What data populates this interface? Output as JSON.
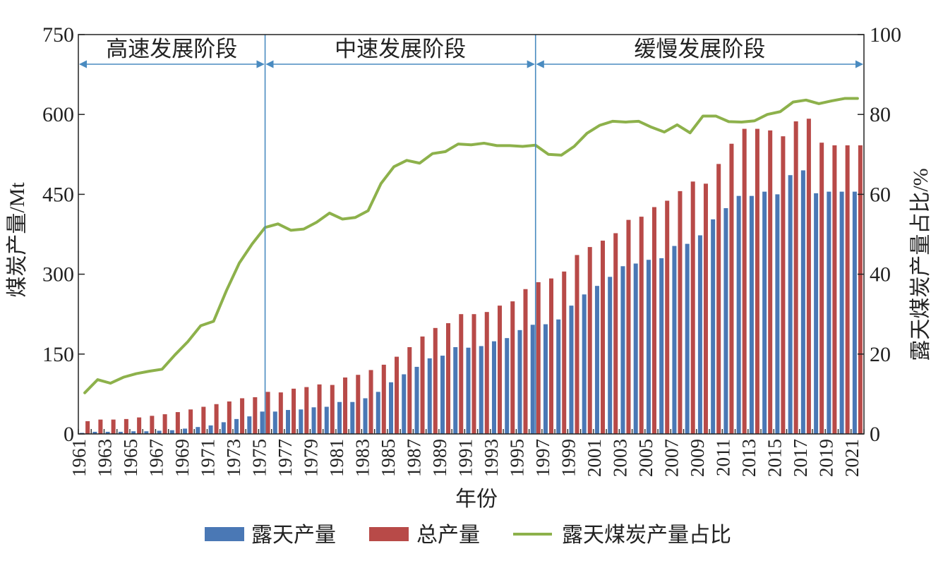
{
  "chart_data": {
    "type": "bar",
    "xlabel": "年份",
    "ylabel_left": "煤炭产量/Mt",
    "ylabel_right": "露天煤炭产量占比/%",
    "ylim_left": [
      0,
      750
    ],
    "ylim_right": [
      0,
      100
    ],
    "yticks_left": [
      "0",
      "150",
      "300",
      "450",
      "600",
      "750"
    ],
    "yticks_right": [
      "0",
      "20",
      "40",
      "60",
      "80",
      "100"
    ],
    "x": [
      1961,
      1962,
      1963,
      1964,
      1965,
      1966,
      1967,
      1968,
      1969,
      1970,
      1971,
      1972,
      1973,
      1974,
      1975,
      1976,
      1977,
      1978,
      1979,
      1980,
      1981,
      1982,
      1983,
      1984,
      1985,
      1986,
      1987,
      1988,
      1989,
      1990,
      1991,
      1992,
      1993,
      1994,
      1995,
      1996,
      1997,
      1998,
      1999,
      2000,
      2001,
      2002,
      2003,
      2004,
      2005,
      2006,
      2007,
      2008,
      2009,
      2010,
      2011,
      2012,
      2013,
      2014,
      2015,
      2016,
      2017,
      2018,
      2019,
      2020,
      2021
    ],
    "xtick_labels": [
      "1961",
      "1963",
      "1965",
      "1967",
      "1969",
      "1971",
      "1973",
      "1975",
      "1977",
      "1979",
      "1981",
      "1983",
      "1985",
      "1987",
      "1989",
      "1991",
      "1993",
      "1995",
      "1997",
      "1999",
      "2001",
      "2003",
      "2005",
      "2007",
      "2009",
      "2011",
      "2013",
      "2015",
      "2017",
      "2019",
      "2021"
    ],
    "series": [
      {
        "name": "露天产量",
        "color": "#4a78b5",
        "type": "bar",
        "axis": "left",
        "values": [
          2,
          4,
          4,
          4,
          5,
          5,
          6,
          7,
          10,
          13,
          16,
          22,
          28,
          33,
          42,
          42,
          45,
          46,
          50,
          51,
          60,
          60,
          67,
          79,
          97,
          112,
          126,
          142,
          147,
          163,
          162,
          165,
          174,
          180,
          195,
          205,
          206,
          215,
          241,
          262,
          278,
          295,
          315,
          320,
          327,
          330,
          353,
          357,
          373,
          403,
          424,
          447,
          447,
          455,
          450,
          486,
          495,
          452,
          455,
          455,
          455
        ],
        "values_note": ""
      },
      {
        "name": "总产量",
        "color": "#b84a48",
        "type": "bar",
        "axis": "left",
        "values": [
          24,
          27,
          27,
          28,
          31,
          34,
          37,
          41,
          46,
          51,
          56,
          61,
          67,
          69,
          79,
          78,
          85,
          88,
          93,
          92,
          106,
          111,
          120,
          130,
          145,
          163,
          183,
          199,
          208,
          225,
          225,
          229,
          241,
          249,
          272,
          285,
          292,
          305,
          336,
          351,
          363,
          377,
          402,
          408,
          426,
          438,
          456,
          474,
          470,
          507,
          545,
          573,
          573,
          570,
          559,
          587,
          592,
          547,
          542,
          542,
          542
        ],
        "values_note": ""
      },
      {
        "name": "露天煤炭产量占比",
        "color": "#8db14b",
        "type": "line",
        "axis": "right",
        "values": [
          10.3,
          13.6,
          12.7,
          14.2,
          15.1,
          15.7,
          16.2,
          19.8,
          23.1,
          27.1,
          28.2,
          35.9,
          42.8,
          47.6,
          51.7,
          52.6,
          51.0,
          51.3,
          53.0,
          55.3,
          53.8,
          54.2,
          55.9,
          62.7,
          66.9,
          68.5,
          67.8,
          70.2,
          70.7,
          72.6,
          72.4,
          72.8,
          72.2,
          72.2,
          72.0,
          72.3,
          70.0,
          69.8,
          72.0,
          75.3,
          77.3,
          78.3,
          78.1,
          78.3,
          76.8,
          75.6,
          77.4,
          75.4,
          79.6,
          79.6,
          78.2,
          78.1,
          78.4,
          80.0,
          80.7,
          83.1,
          83.6,
          82.7,
          83.4,
          84.0,
          84.0
        ]
      }
    ],
    "phases": [
      {
        "label": "高速发展阶段",
        "start": 1961,
        "end": 1975
      },
      {
        "label": "中速发展阶段",
        "start": 1975,
        "end": 1996
      },
      {
        "label": "缓慢发展阶段",
        "start": 1996,
        "end": 2021
      }
    ],
    "legend": {
      "position": "bottom",
      "items": [
        "露天产量",
        "总产量",
        "露天煤炭产量占比"
      ]
    },
    "colors": {
      "axis": "#222222",
      "phase_line": "#4a8bc0"
    }
  }
}
